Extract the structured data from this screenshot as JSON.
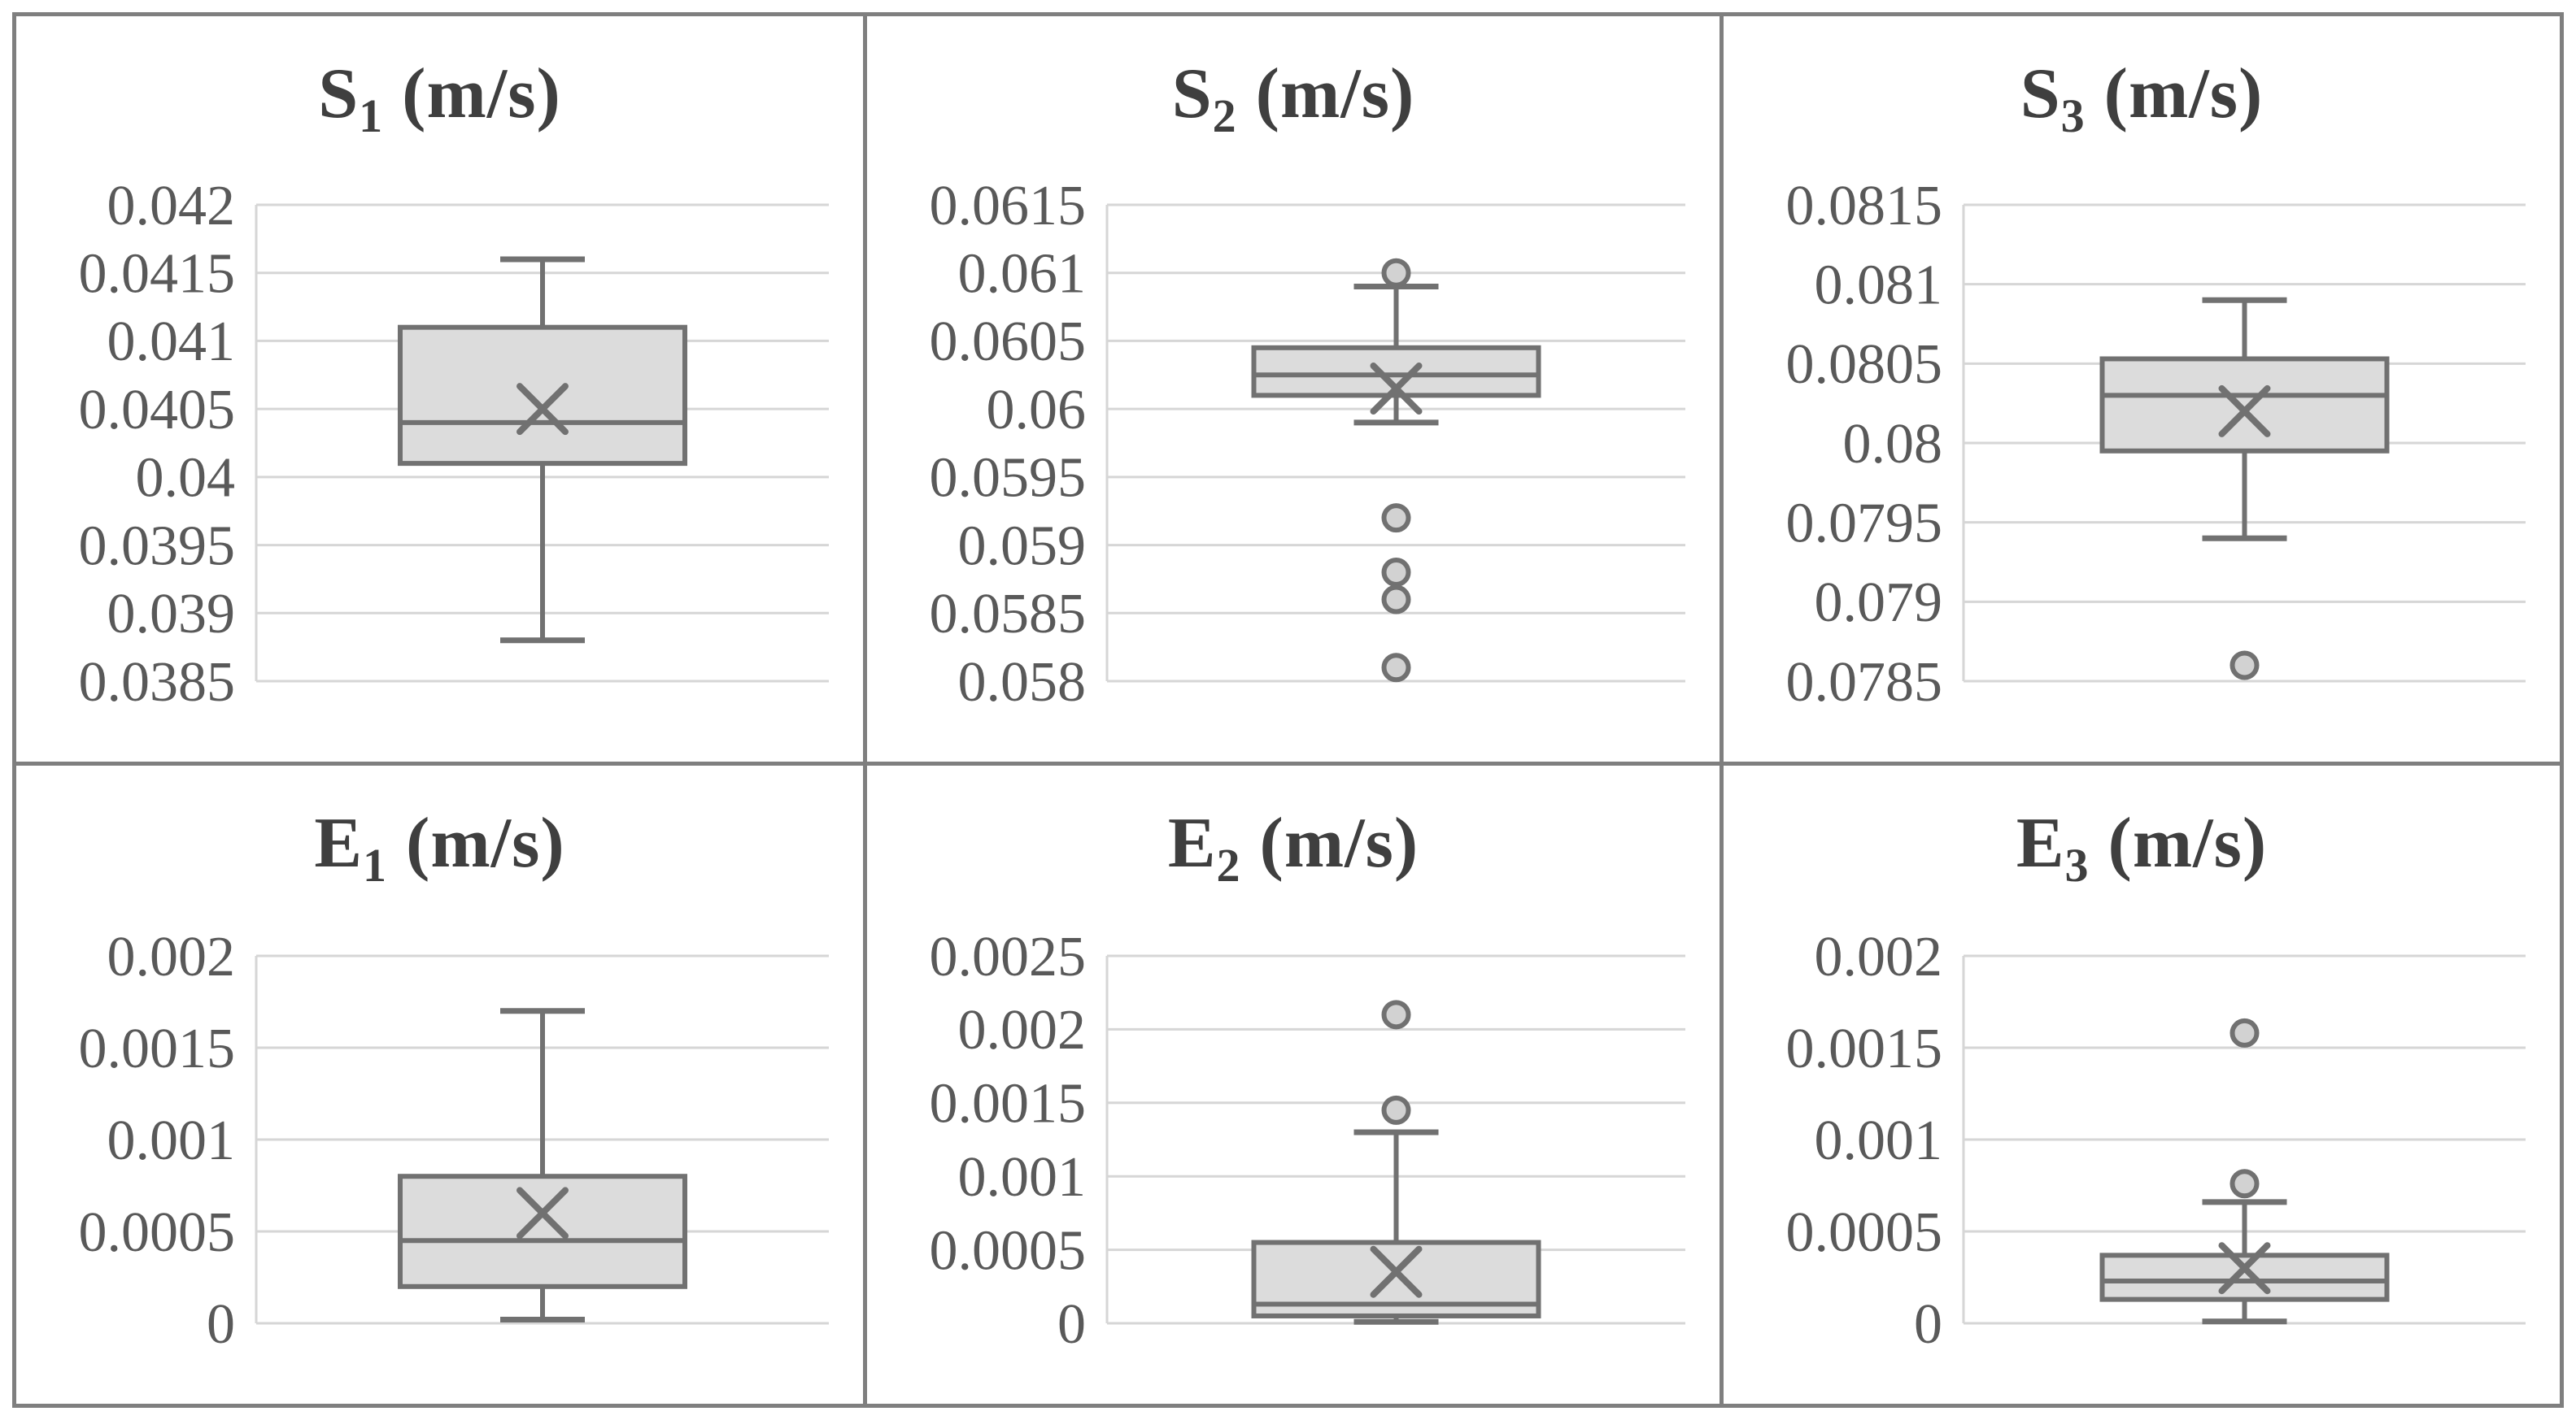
{
  "figure": {
    "description": "2x3 grid of box-and-whisker plots",
    "unit": "(m/s)",
    "colors": {
      "background": "#ffffff",
      "frame_border": "#7f7f7f",
      "panel_divider": "#7f7f7f",
      "gridline": "#d6d6d6",
      "axis_line": "#d6d6d6",
      "box_fill": "#dcdcdc",
      "box_stroke": "#717171",
      "whisker_stroke": "#717171",
      "median_stroke": "#717171",
      "mean_marker_stroke": "#717171",
      "outlier_fill": "#d2d2d2",
      "outlier_stroke": "#717171",
      "tick_label_color": "#595959",
      "title_color": "#3f3f3f"
    }
  },
  "chart_data": [
    {
      "id": "s1",
      "type": "box",
      "row": 0,
      "title": "S1 (m/s)",
      "title_base": "S",
      "title_sub": "1",
      "title_unit": " (m/s)",
      "y_ticks": [
        "0.042",
        "0.0415",
        "0.041",
        "0.0405",
        "0.04",
        "0.0395",
        "0.039",
        "0.0385"
      ],
      "ylim": [
        0.0385,
        0.042
      ],
      "box": {
        "whisker_low": 0.0388,
        "q1": 0.0401,
        "median": 0.0404,
        "mean": 0.0405,
        "q3": 0.0411,
        "whisker_high": 0.0416
      },
      "outliers": []
    },
    {
      "id": "s2",
      "type": "box",
      "row": 0,
      "title": "S2 (m/s)",
      "title_base": "S",
      "title_sub": "2",
      "title_unit": " (m/s)",
      "y_ticks": [
        "0.0615",
        "0.061",
        "0.0605",
        "0.06",
        "0.0595",
        "0.059",
        "0.0585",
        "0.058"
      ],
      "ylim": [
        0.058,
        0.0615
      ],
      "box": {
        "whisker_low": 0.0599,
        "q1": 0.0601,
        "median": 0.06025,
        "mean": 0.06015,
        "q3": 0.06045,
        "whisker_high": 0.0609
      },
      "outliers": [
        0.061,
        0.0592,
        0.0588,
        0.0586,
        0.0581
      ]
    },
    {
      "id": "s3",
      "type": "box",
      "row": 0,
      "title": "S3 (m/s)",
      "title_base": "S",
      "title_sub": "3",
      "title_unit": " (m/s)",
      "y_ticks": [
        "0.0815",
        "0.081",
        "0.0805",
        "0.08",
        "0.0795",
        "0.079",
        "0.0785"
      ],
      "ylim": [
        0.0785,
        0.0815
      ],
      "box": {
        "whisker_low": 0.0794,
        "q1": 0.07995,
        "median": 0.0803,
        "mean": 0.0802,
        "q3": 0.08053,
        "whisker_high": 0.0809
      },
      "outliers": [
        0.0786
      ]
    },
    {
      "id": "e1",
      "type": "box",
      "row": 1,
      "title": "E1 (m/s)",
      "title_base": "E",
      "title_sub": "1",
      "title_unit": " (m/s)",
      "y_ticks": [
        "0.002",
        "0.0015",
        "0.001",
        "0.0005",
        "0"
      ],
      "ylim": [
        0,
        0.002
      ],
      "box": {
        "whisker_low": 2e-05,
        "q1": 0.0002,
        "median": 0.00045,
        "mean": 0.0006,
        "q3": 0.0008,
        "whisker_high": 0.0017
      },
      "outliers": []
    },
    {
      "id": "e2",
      "type": "box",
      "row": 1,
      "title": "E2 (m/s)",
      "title_base": "E",
      "title_sub": "2",
      "title_unit": " (m/s)",
      "y_ticks": [
        "0.0025",
        "0.002",
        "0.0015",
        "0.001",
        "0.0005",
        "0"
      ],
      "ylim": [
        0,
        0.0025
      ],
      "box": {
        "whisker_low": 1e-05,
        "q1": 5e-05,
        "median": 0.00013,
        "mean": 0.00035,
        "q3": 0.00055,
        "whisker_high": 0.0013
      },
      "outliers": [
        0.0021,
        0.00145
      ]
    },
    {
      "id": "e3",
      "type": "box",
      "row": 1,
      "title": "E3 (m/s)",
      "title_base": "E",
      "title_sub": "3",
      "title_unit": " (m/s)",
      "y_ticks": [
        "0.002",
        "0.0015",
        "0.001",
        "0.0005",
        "0"
      ],
      "ylim": [
        0,
        0.002
      ],
      "box": {
        "whisker_low": 1e-05,
        "q1": 0.00013,
        "median": 0.00023,
        "mean": 0.0003,
        "q3": 0.00037,
        "whisker_high": 0.00066
      },
      "outliers": [
        0.00158,
        0.00076
      ]
    }
  ]
}
